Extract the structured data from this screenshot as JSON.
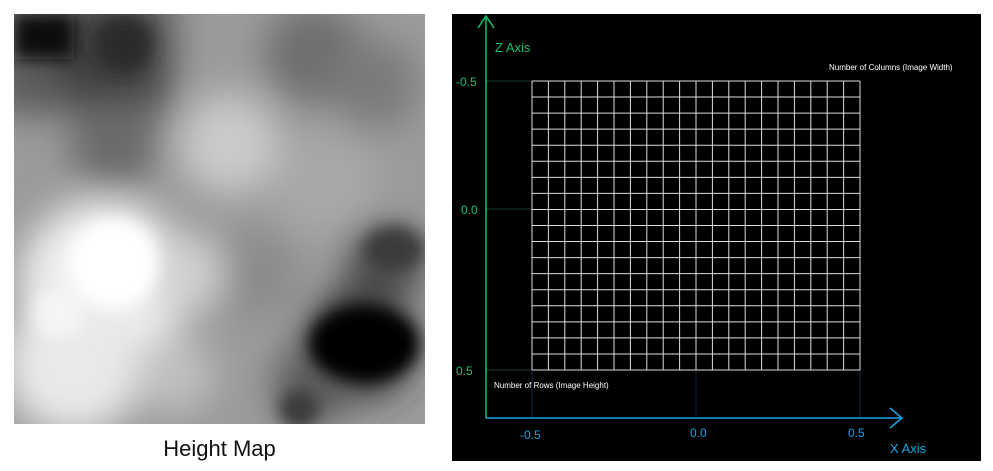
{
  "left_panel": {
    "caption": "Height Map"
  },
  "right_panel": {
    "z_axis_label": "Z Axis",
    "x_axis_label": "X Axis",
    "z_ticks": [
      "-0.5",
      "0.0",
      "0.5"
    ],
    "x_ticks": [
      "-0.5",
      "0.0",
      "0.5"
    ],
    "columns_label": "Number of Columns (Image Width)",
    "rows_label": "Number of Rows (Image Height)",
    "grid": {
      "columns": 20,
      "rows": 18
    }
  },
  "colors": {
    "axis": "#19c26b",
    "x_axis": "#1aa3e8",
    "grid_line": "#dcdcdc",
    "background": "#000000"
  }
}
